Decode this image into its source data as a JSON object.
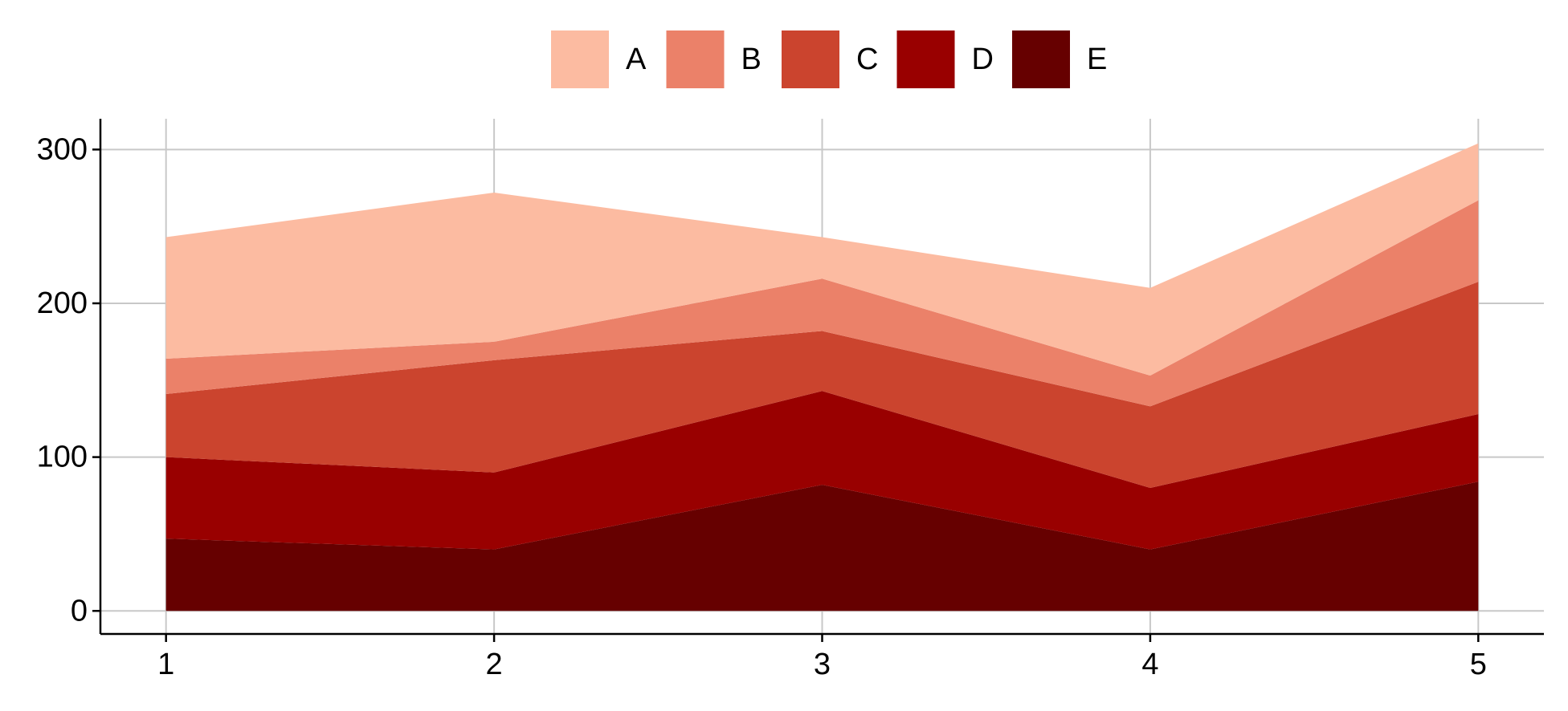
{
  "chart_data": {
    "type": "area",
    "stacked": true,
    "title": "",
    "xlabel": "",
    "ylabel": "",
    "x": [
      1,
      2,
      3,
      4,
      5
    ],
    "xticks": [
      "1",
      "2",
      "3",
      "4",
      "5"
    ],
    "yticks": [
      "0",
      "100",
      "200",
      "300"
    ],
    "xlim": [
      0.8,
      5.2
    ],
    "ylim": [
      -15,
      320
    ],
    "grid": true,
    "legend_position": "top",
    "stack_order_bottom_to_top": [
      "E",
      "D",
      "C",
      "B",
      "A"
    ],
    "series": [
      {
        "name": "A",
        "color": "#fcbba1",
        "values": [
          79,
          97,
          27,
          57,
          37
        ]
      },
      {
        "name": "B",
        "color": "#eb8169",
        "values": [
          23,
          12,
          34,
          20,
          53
        ]
      },
      {
        "name": "C",
        "color": "#cb442e",
        "values": [
          41,
          73,
          39,
          53,
          86
        ]
      },
      {
        "name": "D",
        "color": "#990000",
        "values": [
          53,
          50,
          61,
          40,
          44
        ]
      },
      {
        "name": "E",
        "color": "#660000",
        "values": [
          47,
          40,
          82,
          40,
          84
        ]
      }
    ]
  }
}
